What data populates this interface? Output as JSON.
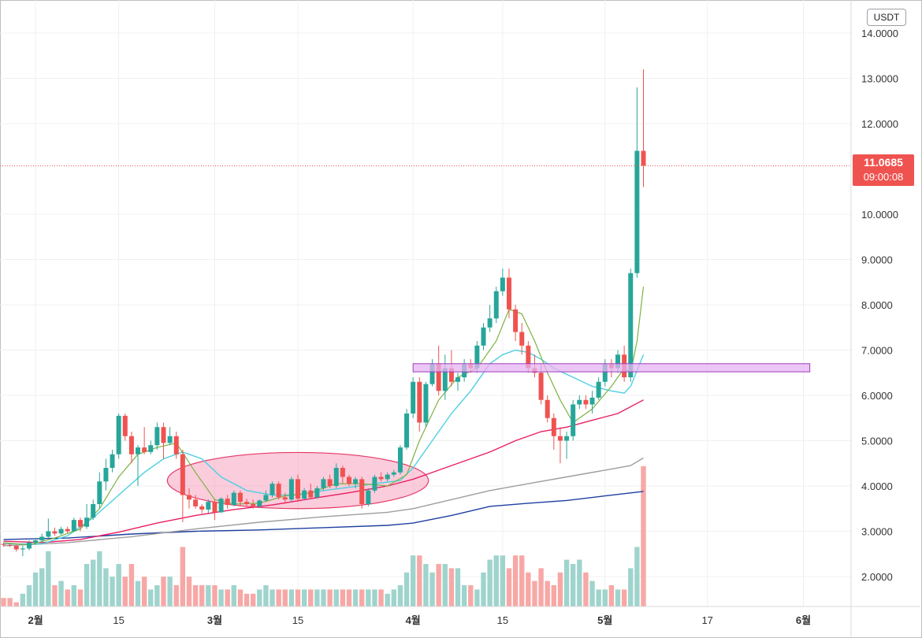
{
  "currency": "USDT",
  "last_price": {
    "value": "11.0685",
    "countdown": "09:00:08",
    "color": "#ef5350"
  },
  "colors": {
    "up": "#26a69a",
    "down": "#ef5350",
    "vol_up": "#9fd4cd",
    "vol_down": "#f7a8a6",
    "ma7": "#7cb342",
    "ma25": "#4dd0e1",
    "ma99": "#e91e63",
    "ma_gray": "#9e9e9e",
    "ma_blue": "#1e3fa0",
    "zone_fill": "#e6b3f0",
    "zone_stroke": "#a23fbf",
    "ellipse_fill": "#f48fb1",
    "ellipse_stroke": "#e53966"
  },
  "chart_data": {
    "type": "candlestick",
    "y_axis": {
      "ticks": [
        "14.0000",
        "13.0000",
        "12.0000",
        "10.0000",
        "9.0000",
        "8.0000",
        "7.0000",
        "6.0000",
        "5.0000",
        "4.0000",
        "3.0000",
        "2.0000"
      ],
      "ylim": [
        1.4,
        14.2
      ]
    },
    "x_axis": {
      "ticks": [
        {
          "label": "2월",
          "bold": true,
          "day": 5
        },
        {
          "label": "15",
          "bold": false,
          "day": 18
        },
        {
          "label": "3월",
          "bold": true,
          "day": 33
        },
        {
          "label": "15",
          "bold": false,
          "day": 46
        },
        {
          "label": "4월",
          "bold": true,
          "day": 64
        },
        {
          "label": "15",
          "bold": false,
          "day": 78
        },
        {
          "label": "5월",
          "bold": true,
          "day": 94
        },
        {
          "label": "17",
          "bold": false,
          "day": 110
        },
        {
          "label": "6월",
          "bold": true,
          "day": 125
        }
      ]
    },
    "candles": [
      [
        2.72,
        2.75,
        2.66,
        2.7
      ],
      [
        2.7,
        2.74,
        2.65,
        2.68
      ],
      [
        2.68,
        2.7,
        2.55,
        2.6
      ],
      [
        2.6,
        2.68,
        2.45,
        2.62
      ],
      [
        2.62,
        2.8,
        2.58,
        2.75
      ],
      [
        2.75,
        2.85,
        2.7,
        2.8
      ],
      [
        2.8,
        2.95,
        2.75,
        2.88
      ],
      [
        2.88,
        3.28,
        2.85,
        3.0
      ],
      [
        3.0,
        3.08,
        2.9,
        2.95
      ],
      [
        2.95,
        3.1,
        2.92,
        3.05
      ],
      [
        3.05,
        3.1,
        2.95,
        3.0
      ],
      [
        3.0,
        3.3,
        2.98,
        3.25
      ],
      [
        3.25,
        3.3,
        3.0,
        3.1
      ],
      [
        3.1,
        3.6,
        3.05,
        3.3
      ],
      [
        3.3,
        3.7,
        3.25,
        3.6
      ],
      [
        3.6,
        4.3,
        3.5,
        4.1
      ],
      [
        4.1,
        4.6,
        3.9,
        4.4
      ],
      [
        4.4,
        4.8,
        4.3,
        4.7
      ],
      [
        4.7,
        5.6,
        4.6,
        5.55
      ],
      [
        5.55,
        5.6,
        5.0,
        5.1
      ],
      [
        5.1,
        5.2,
        4.5,
        4.7
      ],
      [
        4.7,
        4.9,
        4.0,
        4.85
      ],
      [
        4.85,
        5.3,
        4.7,
        4.75
      ],
      [
        4.75,
        5.0,
        4.7,
        4.9
      ],
      [
        4.9,
        5.4,
        4.8,
        5.3
      ],
      [
        5.3,
        5.4,
        4.6,
        4.95
      ],
      [
        4.95,
        5.3,
        4.9,
        5.1
      ],
      [
        5.1,
        5.2,
        4.6,
        4.7
      ],
      [
        4.7,
        4.8,
        3.2,
        3.8
      ],
      [
        3.8,
        3.95,
        3.5,
        3.7
      ],
      [
        3.7,
        3.8,
        3.5,
        3.55
      ],
      [
        3.55,
        3.6,
        3.4,
        3.48
      ],
      [
        3.48,
        3.7,
        3.4,
        3.65
      ],
      [
        3.65,
        3.7,
        3.25,
        3.42
      ],
      [
        3.42,
        3.75,
        3.4,
        3.72
      ],
      [
        3.72,
        3.8,
        3.5,
        3.58
      ],
      [
        3.58,
        3.9,
        3.55,
        3.85
      ],
      [
        3.85,
        3.9,
        3.55,
        3.65
      ],
      [
        3.65,
        3.72,
        3.55,
        3.6
      ],
      [
        3.6,
        3.7,
        3.5,
        3.55
      ],
      [
        3.55,
        3.7,
        3.52,
        3.68
      ],
      [
        3.68,
        3.9,
        3.65,
        3.8
      ],
      [
        3.8,
        4.1,
        3.75,
        4.05
      ],
      [
        4.05,
        4.1,
        3.7,
        3.75
      ],
      [
        3.75,
        3.85,
        3.6,
        3.7
      ],
      [
        3.7,
        4.2,
        3.65,
        4.15
      ],
      [
        4.15,
        4.25,
        3.65,
        3.72
      ],
      [
        3.72,
        3.95,
        3.7,
        3.9
      ],
      [
        3.9,
        4.05,
        3.7,
        3.75
      ],
      [
        3.75,
        4.0,
        3.72,
        3.95
      ],
      [
        3.95,
        4.2,
        3.9,
        4.15
      ],
      [
        4.15,
        4.25,
        3.95,
        4.0
      ],
      [
        4.0,
        4.5,
        3.95,
        4.4
      ],
      [
        4.4,
        4.45,
        4.05,
        4.2
      ],
      [
        4.2,
        4.25,
        4.0,
        4.05
      ],
      [
        4.05,
        4.2,
        3.95,
        4.15
      ],
      [
        4.15,
        4.2,
        3.5,
        3.6
      ],
      [
        3.6,
        3.95,
        3.55,
        3.9
      ],
      [
        3.9,
        4.25,
        3.85,
        4.2
      ],
      [
        4.2,
        4.3,
        4.1,
        4.15
      ],
      [
        4.15,
        4.3,
        4.1,
        4.25
      ],
      [
        4.25,
        4.35,
        4.2,
        4.3
      ],
      [
        4.3,
        4.9,
        4.25,
        4.85
      ],
      [
        4.85,
        5.7,
        4.8,
        5.6
      ],
      [
        5.6,
        6.4,
        5.5,
        6.3
      ],
      [
        6.3,
        6.4,
        5.2,
        5.4
      ],
      [
        5.4,
        6.3,
        5.3,
        6.25
      ],
      [
        6.25,
        6.8,
        6.2,
        6.7
      ],
      [
        6.7,
        7.1,
        6.0,
        6.1
      ],
      [
        6.1,
        6.9,
        5.9,
        6.6
      ],
      [
        6.6,
        7.0,
        6.2,
        6.3
      ],
      [
        6.3,
        6.5,
        6.1,
        6.4
      ],
      [
        6.4,
        6.8,
        6.3,
        6.7
      ],
      [
        6.7,
        6.8,
        6.5,
        6.6
      ],
      [
        6.6,
        7.2,
        6.5,
        7.1
      ],
      [
        7.1,
        7.6,
        7.0,
        7.5
      ],
      [
        7.5,
        8.0,
        7.4,
        7.7
      ],
      [
        7.7,
        8.4,
        7.6,
        8.3
      ],
      [
        8.3,
        8.8,
        8.2,
        8.6
      ],
      [
        8.6,
        8.8,
        7.7,
        7.9
      ],
      [
        7.9,
        8.0,
        7.2,
        7.4
      ],
      [
        7.4,
        7.6,
        6.9,
        7.1
      ],
      [
        7.1,
        7.2,
        6.5,
        6.6
      ],
      [
        6.6,
        6.9,
        6.4,
        6.5
      ],
      [
        6.5,
        6.7,
        5.8,
        5.9
      ],
      [
        5.9,
        6.0,
        5.4,
        5.5
      ],
      [
        5.5,
        5.6,
        4.8,
        5.1
      ],
      [
        5.1,
        5.3,
        4.5,
        5.0
      ],
      [
        5.0,
        5.2,
        4.6,
        5.1
      ],
      [
        5.1,
        5.9,
        5.0,
        5.8
      ],
      [
        5.8,
        6.0,
        5.7,
        5.9
      ],
      [
        5.9,
        6.0,
        5.7,
        5.8
      ],
      [
        5.8,
        6.1,
        5.6,
        5.95
      ],
      [
        5.95,
        6.4,
        5.9,
        6.3
      ],
      [
        6.3,
        6.8,
        6.2,
        6.7
      ],
      [
        6.7,
        6.8,
        6.4,
        6.6
      ],
      [
        6.6,
        7.0,
        6.5,
        6.9
      ],
      [
        6.9,
        7.1,
        6.3,
        6.4
      ],
      [
        6.4,
        8.8,
        6.3,
        8.7
      ],
      [
        8.7,
        12.8,
        8.6,
        11.4
      ],
      [
        11.4,
        13.2,
        10.6,
        11.07
      ]
    ],
    "volume": [
      1.6,
      1.6,
      1.5,
      1.7,
      1.9,
      2.2,
      2.3,
      2.7,
      1.9,
      2.0,
      1.8,
      1.9,
      1.8,
      2.4,
      2.5,
      2.7,
      2.3,
      2.1,
      2.4,
      2.1,
      2.4,
      2.0,
      2.1,
      1.8,
      1.9,
      2.1,
      2.1,
      1.9,
      2.8,
      2.1,
      1.9,
      1.9,
      1.9,
      1.9,
      1.8,
      1.8,
      1.9,
      1.8,
      1.7,
      1.7,
      1.8,
      1.9,
      1.8,
      1.8,
      1.8,
      1.8,
      1.8,
      1.8,
      1.8,
      1.8,
      1.8,
      1.8,
      1.8,
      1.8,
      1.8,
      1.8,
      1.8,
      1.8,
      1.8,
      1.8,
      1.7,
      1.8,
      1.9,
      2.2,
      2.6,
      2.6,
      2.4,
      2.2,
      2.4,
      2.4,
      2.3,
      2.3,
      1.9,
      1.9,
      1.8,
      2.2,
      2.5,
      2.6,
      2.6,
      2.3,
      2.6,
      2.6,
      2.2,
      2.0,
      2.3,
      2.0,
      1.9,
      2.2,
      2.5,
      2.4,
      2.5,
      2.2,
      2.0,
      1.8,
      1.8,
      1.9,
      1.8,
      1.8,
      2.3,
      2.8,
      4.7
    ],
    "ma_lines": {
      "ma7": [
        [
          0,
          2.75
        ],
        [
          4,
          2.7
        ],
        [
          8,
          2.85
        ],
        [
          12,
          3.05
        ],
        [
          15,
          3.5
        ],
        [
          18,
          4.2
        ],
        [
          21,
          4.7
        ],
        [
          24,
          4.85
        ],
        [
          27,
          4.95
        ],
        [
          30,
          4.3
        ],
        [
          33,
          3.7
        ],
        [
          36,
          3.6
        ],
        [
          40,
          3.62
        ],
        [
          44,
          3.78
        ],
        [
          48,
          3.85
        ],
        [
          52,
          4.05
        ],
        [
          56,
          4.05
        ],
        [
          60,
          4.0
        ],
        [
          63,
          4.25
        ],
        [
          65,
          5.0
        ],
        [
          68,
          5.9
        ],
        [
          71,
          6.4
        ],
        [
          74,
          6.6
        ],
        [
          77,
          7.2
        ],
        [
          79,
          7.9
        ],
        [
          81,
          7.8
        ],
        [
          83,
          7.2
        ],
        [
          85,
          6.5
        ],
        [
          87,
          5.9
        ],
        [
          89,
          5.4
        ],
        [
          92,
          5.7
        ],
        [
          95,
          6.2
        ],
        [
          97,
          6.6
        ],
        [
          98,
          6.5
        ],
        [
          99,
          7.2
        ],
        [
          100,
          8.4
        ]
      ],
      "ma25": [
        [
          0,
          2.72
        ],
        [
          6,
          2.72
        ],
        [
          10,
          2.9
        ],
        [
          14,
          3.3
        ],
        [
          18,
          3.8
        ],
        [
          22,
          4.3
        ],
        [
          25,
          4.6
        ],
        [
          28,
          4.75
        ],
        [
          31,
          4.6
        ],
        [
          34,
          4.2
        ],
        [
          38,
          3.9
        ],
        [
          42,
          3.8
        ],
        [
          46,
          3.8
        ],
        [
          50,
          3.9
        ],
        [
          54,
          3.97
        ],
        [
          58,
          4.05
        ],
        [
          62,
          4.12
        ],
        [
          64,
          4.4
        ],
        [
          67,
          5.0
        ],
        [
          70,
          5.6
        ],
        [
          73,
          6.1
        ],
        [
          76,
          6.7
        ],
        [
          78,
          6.9
        ],
        [
          80,
          7.0
        ],
        [
          82,
          6.95
        ],
        [
          84,
          6.8
        ],
        [
          86,
          6.6
        ],
        [
          89,
          6.4
        ],
        [
          92,
          6.2
        ],
        [
          95,
          6.1
        ],
        [
          97,
          6.05
        ],
        [
          98,
          6.2
        ],
        [
          100,
          6.9
        ]
      ],
      "ma99": [
        [
          0,
          2.78
        ],
        [
          6,
          2.75
        ],
        [
          12,
          2.82
        ],
        [
          18,
          2.98
        ],
        [
          24,
          3.18
        ],
        [
          30,
          3.35
        ],
        [
          36,
          3.48
        ],
        [
          42,
          3.58
        ],
        [
          48,
          3.72
        ],
        [
          54,
          3.85
        ],
        [
          60,
          4.0
        ],
        [
          64,
          4.15
        ],
        [
          68,
          4.35
        ],
        [
          72,
          4.55
        ],
        [
          76,
          4.75
        ],
        [
          80,
          5.0
        ],
        [
          84,
          5.2
        ],
        [
          88,
          5.3
        ],
        [
          92,
          5.45
        ],
        [
          96,
          5.6
        ],
        [
          100,
          5.9
        ]
      ],
      "ma_gray": [
        [
          0,
          2.68
        ],
        [
          10,
          2.75
        ],
        [
          20,
          2.88
        ],
        [
          30,
          3.05
        ],
        [
          40,
          3.2
        ],
        [
          50,
          3.32
        ],
        [
          60,
          3.42
        ],
        [
          64,
          3.5
        ],
        [
          70,
          3.7
        ],
        [
          76,
          3.9
        ],
        [
          82,
          4.05
        ],
        [
          88,
          4.2
        ],
        [
          94,
          4.35
        ],
        [
          98,
          4.45
        ],
        [
          100,
          4.62
        ]
      ],
      "ma_blue": [
        [
          0,
          2.82
        ],
        [
          10,
          2.85
        ],
        [
          20,
          2.94
        ],
        [
          30,
          3.0
        ],
        [
          40,
          3.03
        ],
        [
          50,
          3.08
        ],
        [
          60,
          3.13
        ],
        [
          64,
          3.18
        ],
        [
          70,
          3.35
        ],
        [
          76,
          3.55
        ],
        [
          82,
          3.62
        ],
        [
          88,
          3.68
        ],
        [
          94,
          3.78
        ],
        [
          100,
          3.88
        ]
      ]
    },
    "resistance_zone": {
      "from_day": 64,
      "to_day": 126,
      "y_low": 6.52,
      "y_high": 6.7
    },
    "accumulation_ellipse": {
      "center_day": 46,
      "center_y": 4.12,
      "radius_days": 20,
      "radius_y": 0.62
    }
  }
}
